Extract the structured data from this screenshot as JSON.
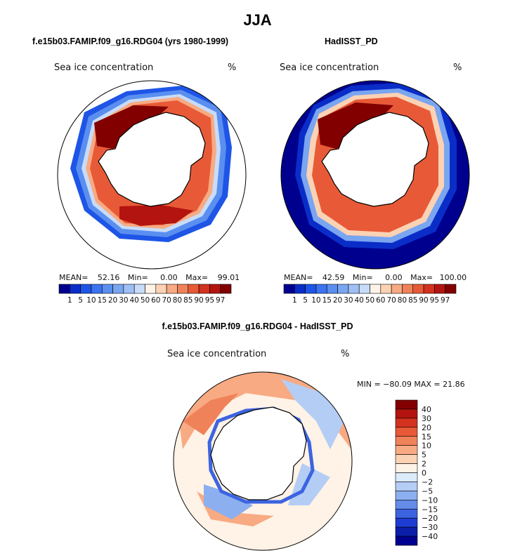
{
  "page": {
    "title": "JJA",
    "left_title": "f.e15b03.FAMIP.f09_g16.RDG04 (yrs 1980-1999)",
    "right_title": "HadISST_PD",
    "diff_title": "f.e15b03.FAMIP.f09_g16.RDG04 - HadISST_PD"
  },
  "panels": {
    "left": {
      "variable": "Sea ice concentration",
      "units": "%",
      "stats": {
        "mean_label": "MEAN=",
        "mean": "52.16",
        "min_label": "Min=",
        "min": "0.00",
        "max_label": "Max=",
        "max": "99.01"
      }
    },
    "right": {
      "variable": "Sea ice concentration",
      "units": "%",
      "stats": {
        "mean_label": "MEAN=",
        "mean": "42.59",
        "min_label": "Min=",
        "min": "0.00",
        "max_label": "Max=",
        "max": "100.00"
      }
    },
    "diff": {
      "variable": "Sea ice concentration",
      "units": "%",
      "minmax": "MIN = −80.09 MAX =   21.86"
    }
  },
  "abs_colorbar": {
    "levels": [
      "1",
      "5",
      "10",
      "15",
      "20",
      "30",
      "40",
      "50",
      "60",
      "70",
      "80",
      "85",
      "90",
      "95",
      "97"
    ],
    "colors": [
      "#00008f",
      "#0a2dc8",
      "#1e55e6",
      "#3c73f0",
      "#5a8ff0",
      "#7aa5f0",
      "#9ec0f5",
      "#c8dcfa",
      "#fff2e6",
      "#fcd2b4",
      "#f8aa82",
      "#f0825a",
      "#e85a37",
      "#d2321e",
      "#b4140f",
      "#820000"
    ]
  },
  "diff_colorbar": {
    "levels": [
      "40",
      "30",
      "20",
      "15",
      "10",
      "5",
      "2",
      "0",
      "−2",
      "−5",
      "−10",
      "−15",
      "−20",
      "−30",
      "−40"
    ],
    "colors": [
      "#820000",
      "#b4140f",
      "#d2321e",
      "#e85a37",
      "#f0825a",
      "#f8aa82",
      "#fcd2b4",
      "#fff2e6",
      "#dcebfa",
      "#b4cdf5",
      "#8cafef",
      "#648ce8",
      "#3c64e1",
      "#1e3cd2",
      "#0a1eaa",
      "#00008f"
    ]
  }
}
